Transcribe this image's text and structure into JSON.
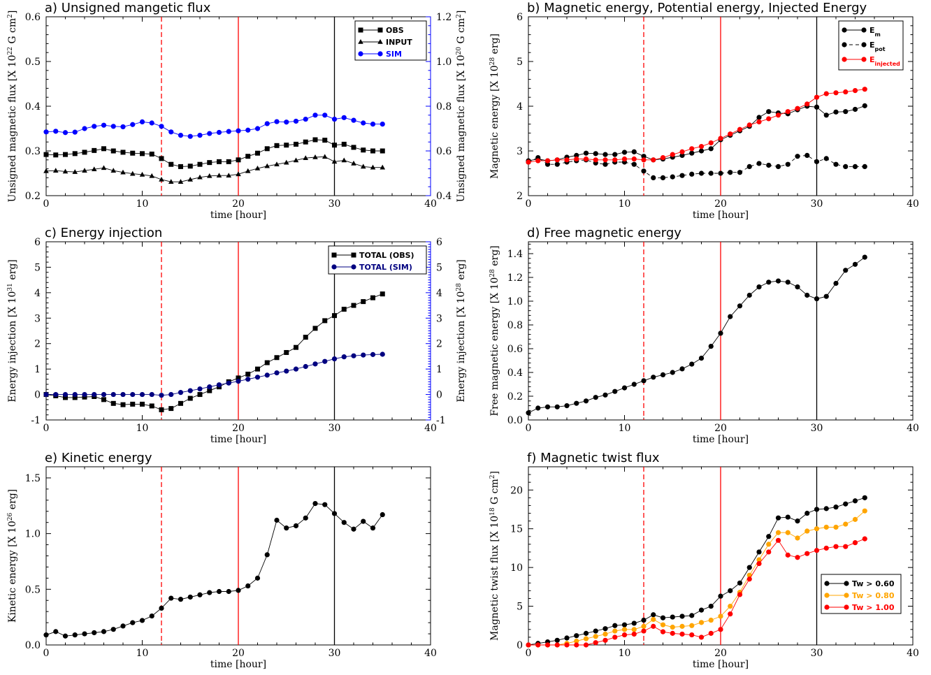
{
  "chart_data": [
    {
      "id": "a",
      "type": "line",
      "title": "a) Unsigned mangetic flux",
      "xlabel": "time [hour]",
      "ylabel": "Unsigned magnetic flux [X 10",
      "ylabel_sup": "22",
      "ylabel_unit": " G cm",
      "ylabel_unit_sup": "2",
      "ylabel_end": "]",
      "xlim": [
        0,
        40
      ],
      "ylim": [
        0.2,
        0.6
      ],
      "xticks": [
        "0",
        "10",
        "20",
        "30",
        "40"
      ],
      "yticks": [
        "0.2",
        "0.3",
        "0.4",
        "0.5",
        "0.6"
      ],
      "y2label": "Unsigned magnetic flux [X 10",
      "y2label_sup": "20",
      "y2label_unit": " G cm",
      "y2label_unit_sup": "2",
      "y2label_end": "]",
      "y2lim": [
        0.4,
        1.2
      ],
      "y2ticks": [
        "0.4",
        "0.6",
        "0.8",
        "1.0",
        "1.2"
      ],
      "series": [
        {
          "name": "OBS",
          "color": "#000000",
          "marker": "square",
          "axis": "left",
          "values": [
            0.292,
            0.291,
            0.292,
            0.294,
            0.297,
            0.301,
            0.305,
            0.3,
            0.297,
            0.295,
            0.294,
            0.293,
            0.283,
            0.27,
            0.265,
            0.266,
            0.27,
            0.274,
            0.276,
            0.276,
            0.28,
            0.288,
            0.295,
            0.305,
            0.312,
            0.313,
            0.315,
            0.32,
            0.325,
            0.324,
            0.313,
            0.315,
            0.308,
            0.302,
            0.3,
            0.3
          ]
        },
        {
          "name": "INPUT",
          "color": "#000000",
          "marker": "triangle",
          "axis": "left",
          "values": [
            0.255,
            0.256,
            0.254,
            0.253,
            0.256,
            0.259,
            0.262,
            0.256,
            0.252,
            0.249,
            0.247,
            0.244,
            0.236,
            0.231,
            0.231,
            0.236,
            0.241,
            0.244,
            0.245,
            0.245,
            0.248,
            0.255,
            0.261,
            0.266,
            0.27,
            0.274,
            0.279,
            0.284,
            0.286,
            0.287,
            0.276,
            0.279,
            0.272,
            0.265,
            0.263,
            0.263
          ]
        },
        {
          "name": "SIM",
          "color": "#0000ff",
          "marker": "circle",
          "axis": "right",
          "values": [
            0.685,
            0.688,
            0.682,
            0.684,
            0.7,
            0.71,
            0.715,
            0.71,
            0.708,
            0.718,
            0.73,
            0.725,
            0.71,
            0.685,
            0.67,
            0.665,
            0.67,
            0.678,
            0.683,
            0.687,
            0.69,
            0.693,
            0.7,
            0.722,
            0.731,
            0.729,
            0.733,
            0.742,
            0.76,
            0.76,
            0.742,
            0.749,
            0.737,
            0.725,
            0.72,
            0.72
          ]
        }
      ],
      "vlines": [
        {
          "x": 12,
          "color": "#ff0000",
          "style": "dashed"
        },
        {
          "x": 20,
          "color": "#ff0000",
          "style": "solid"
        },
        {
          "x": 30,
          "color": "#000000",
          "style": "solid"
        }
      ],
      "legend_position": "top-right"
    },
    {
      "id": "b",
      "type": "line",
      "title": "b) Magnetic energy, Potential energy, Injected Energy",
      "xlabel": "time [hour]",
      "ylabel": "Magnetic energy [X 10",
      "ylabel_sup": "28",
      "ylabel_unit": " erg]",
      "xlim": [
        0,
        40
      ],
      "ylim": [
        2,
        6
      ],
      "xticks": [
        "0",
        "10",
        "20",
        "30",
        "40"
      ],
      "yticks": [
        "2",
        "3",
        "4",
        "5",
        "6"
      ],
      "series": [
        {
          "name": "E",
          "sub": "m",
          "color": "#000000",
          "marker": "circle",
          "linestyle": "solid",
          "values": [
            2.78,
            2.82,
            2.78,
            2.8,
            2.86,
            2.9,
            2.95,
            2.94,
            2.92,
            2.92,
            2.97,
            2.98,
            2.88,
            2.8,
            2.82,
            2.86,
            2.9,
            2.95,
            3.0,
            3.05,
            3.25,
            3.35,
            3.45,
            3.55,
            3.75,
            3.88,
            3.85,
            3.83,
            3.92,
            4.0,
            3.98,
            3.8,
            3.87,
            3.88,
            3.93,
            4.01
          ]
        },
        {
          "name": "E",
          "sub": "pot",
          "color": "#000000",
          "marker": "circle",
          "linestyle": "dashed",
          "values": [
            2.75,
            2.85,
            2.7,
            2.7,
            2.75,
            2.78,
            2.8,
            2.73,
            2.7,
            2.75,
            2.75,
            2.7,
            2.55,
            2.4,
            2.4,
            2.42,
            2.45,
            2.48,
            2.5,
            2.5,
            2.5,
            2.52,
            2.52,
            2.65,
            2.72,
            2.68,
            2.65,
            2.7,
            2.88,
            2.9,
            2.76,
            2.83,
            2.7,
            2.65,
            2.65,
            2.65
          ]
        },
        {
          "name": "E",
          "sub": "injected",
          "color": "#ff0000",
          "marker": "circle",
          "linestyle": "solid",
          "values": [
            2.75,
            2.78,
            2.78,
            2.8,
            2.8,
            2.82,
            2.82,
            2.8,
            2.8,
            2.8,
            2.82,
            2.82,
            2.8,
            2.8,
            2.85,
            2.92,
            2.98,
            3.05,
            3.1,
            3.18,
            3.28,
            3.38,
            3.48,
            3.58,
            3.65,
            3.72,
            3.8,
            3.88,
            3.95,
            4.05,
            4.2,
            4.28,
            4.3,
            4.32,
            4.35,
            4.38
          ]
        }
      ],
      "vlines": [
        {
          "x": 12,
          "color": "#ff0000",
          "style": "dashed"
        },
        {
          "x": 20,
          "color": "#ff0000",
          "style": "solid"
        },
        {
          "x": 30,
          "color": "#000000",
          "style": "solid"
        }
      ],
      "legend_position": "top-right"
    },
    {
      "id": "c",
      "type": "line",
      "title": "c) Energy injection",
      "xlabel": "time [hour]",
      "ylabel": "Energy injection [X 10",
      "ylabel_sup": "31",
      "ylabel_unit": " erg]",
      "xlim": [
        0,
        40
      ],
      "ylim": [
        -1,
        6
      ],
      "xticks": [
        "0",
        "10",
        "20",
        "30",
        "40"
      ],
      "yticks": [
        "-1",
        "0",
        "1",
        "2",
        "3",
        "4",
        "5",
        "6"
      ],
      "y2label": "Energy injection [X 10",
      "y2label_sup": "28",
      "y2label_unit": " erg]",
      "y2lim": [
        -1,
        6
      ],
      "y2ticks": [
        "-1",
        "0",
        "1",
        "2",
        "3",
        "4",
        "5",
        "6"
      ],
      "series": [
        {
          "name": "TOTAL (OBS)",
          "color": "#000000",
          "marker": "square",
          "axis": "left",
          "values": [
            0.0,
            -0.05,
            -0.12,
            -0.12,
            -0.1,
            -0.08,
            -0.2,
            -0.35,
            -0.4,
            -0.38,
            -0.38,
            -0.45,
            -0.6,
            -0.55,
            -0.35,
            -0.15,
            0.0,
            0.15,
            0.3,
            0.5,
            0.65,
            0.8,
            1.0,
            1.25,
            1.45,
            1.65,
            1.85,
            2.25,
            2.6,
            2.9,
            3.1,
            3.35,
            3.5,
            3.65,
            3.8,
            3.95
          ]
        },
        {
          "name": "TOTAL (SIM)",
          "color": "#000080",
          "marker": "circle",
          "axis": "right",
          "values": [
            0.0,
            0.0,
            0.0,
            0.0,
            0.0,
            0.0,
            0.0,
            0.0,
            0.0,
            0.0,
            0.0,
            0.0,
            -0.03,
            0.0,
            0.08,
            0.15,
            0.22,
            0.3,
            0.38,
            0.45,
            0.52,
            0.6,
            0.68,
            0.76,
            0.85,
            0.92,
            1.0,
            1.1,
            1.2,
            1.3,
            1.4,
            1.48,
            1.52,
            1.55,
            1.57,
            1.58
          ]
        }
      ],
      "vlines": [
        {
          "x": 12,
          "color": "#ff0000",
          "style": "dashed"
        },
        {
          "x": 20,
          "color": "#ff0000",
          "style": "solid"
        },
        {
          "x": 30,
          "color": "#000000",
          "style": "solid"
        }
      ],
      "legend_position": "top-right"
    },
    {
      "id": "d",
      "type": "line",
      "title": "d) Free magnetic energy",
      "xlabel": "time [hour]",
      "ylabel": "Free magnetic energy [X 10",
      "ylabel_sup": "28",
      "ylabel_unit": " erg]",
      "xlim": [
        0,
        40
      ],
      "ylim": [
        0,
        1.5
      ],
      "xticks": [
        "0",
        "10",
        "20",
        "30",
        "40"
      ],
      "yticks": [
        "0.0",
        "0.2",
        "0.4",
        "0.6",
        "0.8",
        "1.0",
        "1.2",
        "1.4"
      ],
      "series": [
        {
          "name": "",
          "color": "#000000",
          "marker": "circle",
          "values": [
            0.06,
            0.1,
            0.11,
            0.11,
            0.12,
            0.14,
            0.16,
            0.19,
            0.21,
            0.24,
            0.27,
            0.3,
            0.33,
            0.36,
            0.38,
            0.4,
            0.43,
            0.47,
            0.52,
            0.62,
            0.73,
            0.87,
            0.96,
            1.05,
            1.12,
            1.16,
            1.17,
            1.16,
            1.12,
            1.05,
            1.02,
            1.04,
            1.15,
            1.26,
            1.31,
            1.37
          ]
        }
      ],
      "vlines": [
        {
          "x": 12,
          "color": "#ff0000",
          "style": "dashed"
        },
        {
          "x": 20,
          "color": "#ff0000",
          "style": "solid"
        },
        {
          "x": 30,
          "color": "#000000",
          "style": "solid"
        }
      ]
    },
    {
      "id": "e",
      "type": "line",
      "title": "e) Kinetic energy",
      "xlabel": "time [hour]",
      "ylabel": "Kinetic energy [X 10",
      "ylabel_sup": "26",
      "ylabel_unit": " erg]",
      "xlim": [
        0,
        40
      ],
      "ylim": [
        0,
        1.6
      ],
      "xticks": [
        "0",
        "10",
        "20",
        "30",
        "40"
      ],
      "yticks": [
        "0.0",
        "0.5",
        "1.0",
        "1.5"
      ],
      "series": [
        {
          "name": "",
          "color": "#000000",
          "marker": "circle",
          "values": [
            0.09,
            0.12,
            0.08,
            0.09,
            0.1,
            0.11,
            0.12,
            0.14,
            0.17,
            0.2,
            0.22,
            0.26,
            0.33,
            0.42,
            0.41,
            0.43,
            0.45,
            0.47,
            0.48,
            0.48,
            0.49,
            0.53,
            0.6,
            0.81,
            1.12,
            1.05,
            1.07,
            1.14,
            1.27,
            1.26,
            1.18,
            1.1,
            1.04,
            1.11,
            1.05,
            1.17
          ]
        }
      ],
      "vlines": [
        {
          "x": 12,
          "color": "#ff0000",
          "style": "dashed"
        },
        {
          "x": 20,
          "color": "#ff0000",
          "style": "solid"
        },
        {
          "x": 30,
          "color": "#000000",
          "style": "solid"
        }
      ]
    },
    {
      "id": "f",
      "type": "line",
      "title": "f) Magnetic twist flux",
      "xlabel": "time [hour]",
      "ylabel": "Magnetic twist flux [X 10",
      "ylabel_sup": "18",
      "ylabel_unit": " G cm",
      "ylabel_unit_sup": "2",
      "ylabel_end": "]",
      "xlim": [
        0,
        40
      ],
      "ylim": [
        0,
        23
      ],
      "xticks": [
        "0",
        "10",
        "20",
        "30",
        "40"
      ],
      "yticks": [
        "0",
        "5",
        "10",
        "15",
        "20"
      ],
      "series": [
        {
          "name": "Tw > 0.60",
          "color": "#000000",
          "marker": "circle",
          "values": [
            0.0,
            0.2,
            0.4,
            0.6,
            0.9,
            1.2,
            1.5,
            1.8,
            2.1,
            2.5,
            2.6,
            2.8,
            3.2,
            3.9,
            3.5,
            3.6,
            3.7,
            3.8,
            4.5,
            5.0,
            6.3,
            7.0,
            8.0,
            10.0,
            12.0,
            14.0,
            16.4,
            16.5,
            16.0,
            17.0,
            17.5,
            17.6,
            17.8,
            18.2,
            18.6,
            19.0
          ]
        },
        {
          "name": "Tw > 0.80",
          "color": "#ffa500",
          "marker": "circle",
          "values": [
            0.0,
            0.0,
            0.0,
            0.0,
            0.2,
            0.5,
            0.8,
            1.1,
            1.4,
            1.8,
            2.0,
            2.0,
            2.4,
            3.3,
            2.6,
            2.3,
            2.4,
            2.5,
            2.9,
            3.2,
            3.7,
            5.0,
            6.8,
            9.0,
            11.0,
            13.0,
            14.5,
            14.5,
            13.8,
            14.7,
            15.0,
            15.2,
            15.2,
            15.6,
            16.2,
            17.3
          ]
        },
        {
          "name": "Tw > 1.00",
          "color": "#ff0000",
          "marker": "circle",
          "values": [
            0.0,
            0.0,
            0.0,
            0.0,
            0.0,
            0.0,
            0.0,
            0.3,
            0.6,
            1.0,
            1.3,
            1.4,
            1.8,
            2.4,
            1.7,
            1.5,
            1.4,
            1.3,
            1.0,
            1.5,
            2.0,
            4.0,
            6.5,
            8.5,
            10.5,
            12.0,
            13.5,
            11.6,
            11.3,
            11.8,
            12.2,
            12.5,
            12.7,
            12.7,
            13.2,
            13.7
          ]
        }
      ],
      "vlines": [
        {
          "x": 12,
          "color": "#ff0000",
          "style": "dashed"
        },
        {
          "x": 20,
          "color": "#ff0000",
          "style": "solid"
        },
        {
          "x": 30,
          "color": "#000000",
          "style": "solid"
        }
      ],
      "legend_position": "bottom-right"
    }
  ]
}
